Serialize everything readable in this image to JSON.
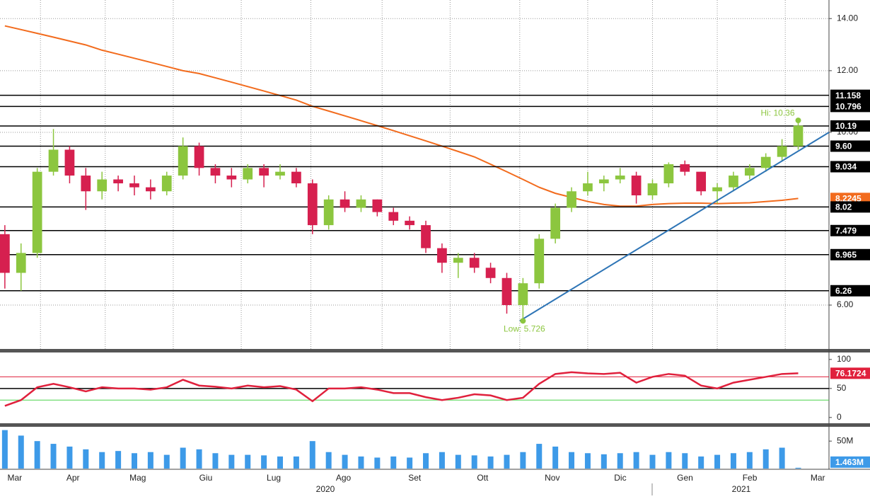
{
  "chart_data": [
    {
      "type": "candlestick",
      "x": [
        0,
        1,
        2,
        3,
        4,
        5,
        6,
        7,
        8,
        9,
        10,
        11,
        12,
        13,
        14,
        15,
        16,
        17,
        18,
        19,
        20,
        21,
        22,
        23,
        24,
        25,
        26,
        27,
        28,
        29,
        30,
        31,
        32,
        33,
        34,
        35,
        36,
        37,
        38,
        39,
        40,
        41,
        42,
        43,
        44,
        45,
        46,
        47,
        48,
        49
      ],
      "open": [
        7.4,
        6.6,
        7.0,
        8.9,
        9.5,
        8.8,
        8.4,
        8.7,
        8.6,
        8.5,
        8.4,
        8.8,
        9.6,
        9.0,
        8.8,
        8.7,
        9.0,
        8.8,
        8.9,
        8.6,
        7.6,
        8.2,
        8.0,
        8.2,
        7.9,
        7.7,
        7.6,
        7.1,
        6.8,
        6.9,
        6.7,
        6.5,
        6.0,
        6.4,
        7.3,
        8.0,
        8.4,
        8.6,
        8.7,
        8.8,
        8.3,
        8.6,
        9.1,
        8.9,
        8.4,
        8.5,
        8.8,
        9.0,
        9.3,
        9.6
      ],
      "high": [
        7.6,
        7.2,
        9.0,
        10.1,
        9.6,
        9.0,
        8.9,
        8.8,
        8.8,
        8.7,
        8.9,
        9.85,
        9.7,
        9.1,
        9.0,
        9.1,
        9.1,
        9.1,
        9.0,
        8.7,
        8.3,
        8.4,
        8.3,
        8.2,
        8.0,
        7.8,
        7.7,
        7.2,
        7.0,
        7.0,
        6.8,
        6.6,
        6.5,
        7.4,
        8.1,
        8.5,
        8.9,
        8.8,
        9.0,
        8.9,
        8.7,
        9.15,
        9.2,
        8.9,
        8.6,
        8.9,
        9.1,
        9.4,
        9.8,
        10.36
      ],
      "low": [
        6.3,
        6.26,
        6.9,
        8.8,
        8.6,
        7.95,
        8.2,
        8.4,
        8.3,
        8.2,
        8.3,
        8.7,
        8.8,
        8.6,
        8.5,
        8.6,
        8.5,
        8.7,
        8.5,
        7.4,
        7.5,
        7.9,
        7.9,
        7.8,
        7.6,
        7.5,
        7.0,
        6.6,
        6.5,
        6.6,
        6.4,
        5.85,
        5.726,
        6.3,
        7.2,
        7.9,
        8.3,
        8.4,
        8.6,
        8.1,
        8.2,
        8.5,
        8.8,
        8.3,
        8.1,
        8.4,
        8.7,
        8.9,
        9.2,
        9.5
      ],
      "close": [
        6.6,
        7.0,
        8.9,
        9.5,
        8.8,
        8.4,
        8.7,
        8.6,
        8.5,
        8.4,
        8.8,
        9.6,
        9.0,
        8.8,
        8.7,
        9.0,
        8.8,
        8.9,
        8.6,
        7.6,
        8.2,
        8.0,
        8.2,
        7.9,
        7.7,
        7.6,
        7.1,
        6.8,
        6.9,
        6.7,
        6.5,
        6.0,
        6.4,
        7.3,
        8.0,
        8.4,
        8.6,
        8.7,
        8.8,
        8.3,
        8.6,
        9.1,
        8.9,
        8.4,
        8.5,
        8.8,
        9.0,
        9.3,
        9.6,
        10.2
      ],
      "up_color": "#8cc63f",
      "down_color": "#d6204f",
      "xlim": [
        -0.3,
        50.9
      ],
      "ylim": [
        5.27,
        14.79
      ],
      "log_scale": true,
      "grid": true,
      "yticks": [
        {
          "value": 14,
          "label": "14.00"
        },
        {
          "value": 12,
          "label": "12.00"
        },
        {
          "value": 10,
          "label": "10.00"
        },
        {
          "value": 6,
          "label": "6.00"
        }
      ],
      "xticks": [
        {
          "value": -1.4,
          "label": "Mar"
        },
        {
          "value": 2.2,
          "label": "Apr"
        },
        {
          "value": 6.2,
          "label": "Mag"
        },
        {
          "value": 10.4,
          "label": "Giu"
        },
        {
          "value": 14.6,
          "label": "Lug"
        },
        {
          "value": 18.9,
          "label": "Ago"
        },
        {
          "value": 23.3,
          "label": "Set"
        },
        {
          "value": 27.5,
          "label": "Ott"
        },
        {
          "value": 31.8,
          "label": "Nov"
        },
        {
          "value": 36,
          "label": "Dic"
        },
        {
          "value": 40,
          "label": "Gen"
        },
        {
          "value": 44,
          "label": "Feb"
        },
        {
          "value": 48.2,
          "label": "Mar"
        }
      ],
      "year_labels": [
        "2020",
        "2021"
      ],
      "moving_average": {
        "color": "#f26b1d",
        "values": [
          13.7,
          13.55,
          13.4,
          13.25,
          13.1,
          12.95,
          12.75,
          12.6,
          12.45,
          12.3,
          12.15,
          12.0,
          11.9,
          11.75,
          11.6,
          11.45,
          11.3,
          11.15,
          11.0,
          10.8,
          10.65,
          10.5,
          10.35,
          10.2,
          10.05,
          9.9,
          9.75,
          9.6,
          9.45,
          9.3,
          9.1,
          8.9,
          8.7,
          8.5,
          8.35,
          8.25,
          8.15,
          8.08,
          8.04,
          8.04,
          8.08,
          8.1,
          8.11,
          8.11,
          8.1,
          8.11,
          8.12,
          8.15,
          8.18,
          8.2245
        ]
      },
      "levels": [
        11.158,
        10.796,
        10.19,
        {
          "value": 9.6,
          "label": "9.60"
        },
        9.034,
        8.02,
        7.479,
        6.965,
        6.26
      ],
      "trendline": {
        "color": "#2e75b6",
        "x": [
          31.8,
          50.9
        ],
        "values": [
          5.726,
          10.0
        ]
      },
      "annotations": [
        {
          "text": "Hi: 10.36",
          "x": 49,
          "value": 10.36
        },
        {
          "text": "Low: 5.726",
          "x": 32,
          "value": 5.726
        }
      ],
      "annotation_color": "#8cc63f"
    },
    {
      "type": "line",
      "x": [
        0,
        1,
        2,
        3,
        4,
        5,
        6,
        7,
        8,
        9,
        10,
        11,
        12,
        13,
        14,
        15,
        16,
        17,
        18,
        19,
        20,
        21,
        22,
        23,
        24,
        25,
        26,
        27,
        28,
        29,
        30,
        31,
        32,
        33,
        34,
        35,
        36,
        37,
        38,
        39,
        40,
        41,
        42,
        43,
        44,
        45,
        46,
        47,
        48,
        49
      ],
      "values": [
        20,
        30,
        52,
        58,
        52,
        45,
        52,
        50,
        50,
        48,
        52,
        65,
        55,
        53,
        50,
        55,
        52,
        54,
        48,
        28,
        50,
        50,
        52,
        48,
        42,
        42,
        35,
        30,
        34,
        40,
        38,
        30,
        34,
        58,
        75,
        78,
        76,
        75,
        77,
        60,
        70,
        75,
        72,
        55,
        50,
        60,
        65,
        70,
        75,
        76.1724
      ],
      "color": "#e0203c",
      "xlim": [
        -0.3,
        50.9
      ],
      "ylim": [
        -10,
        112
      ],
      "yticks": [
        100,
        50,
        0
      ],
      "levels": [
        {
          "value": 70,
          "color": "#e0203c"
        },
        {
          "value": 50,
          "color": "#000000"
        },
        {
          "value": 30,
          "color": "#4cd24c"
        }
      ]
    },
    {
      "type": "bar",
      "x": [
        0,
        1,
        2,
        3,
        4,
        5,
        6,
        7,
        8,
        9,
        10,
        11,
        12,
        13,
        14,
        15,
        16,
        17,
        18,
        19,
        20,
        21,
        22,
        23,
        24,
        25,
        26,
        27,
        28,
        29,
        30,
        31,
        32,
        33,
        34,
        35,
        36,
        37,
        38,
        39,
        40,
        41,
        42,
        43,
        44,
        45,
        46,
        47,
        48,
        49
      ],
      "values": [
        70,
        60,
        50,
        45,
        40,
        35,
        30,
        32,
        28,
        30,
        25,
        38,
        35,
        28,
        25,
        25,
        24,
        22,
        22,
        50,
        30,
        25,
        22,
        20,
        22,
        20,
        28,
        30,
        25,
        24,
        22,
        25,
        30,
        45,
        40,
        30,
        28,
        26,
        28,
        30,
        25,
        30,
        28,
        22,
        25,
        28,
        30,
        35,
        38,
        1.463
      ],
      "last_value_label": "1.463M",
      "color": "#3d9ae8",
      "xlim": [
        -0.3,
        50.9
      ],
      "ylim": [
        0,
        76
      ],
      "yticks": [
        {
          "value": 50,
          "label": "50M"
        }
      ]
    }
  ]
}
